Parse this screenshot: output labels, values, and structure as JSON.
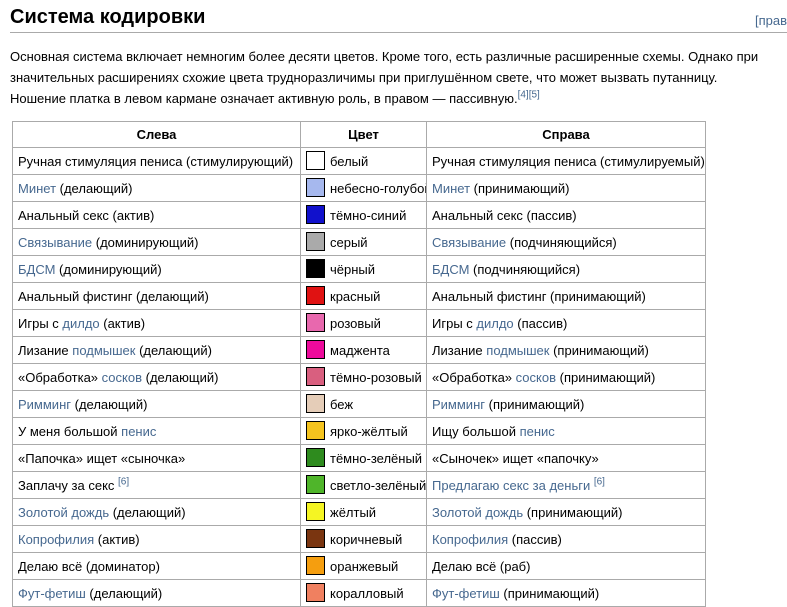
{
  "header": {
    "title": "Система кодировки",
    "edit_label": "[прав"
  },
  "intro": {
    "segments": [
      {
        "text": "Основная система включает немногим более десяти цветов. Кроме того, есть различные расширенные схемы. Однако при значительных расширениях схожие цвета трудноразличимы при приглушённом свете, что может вызвать путанницу. Ношение платка в левом кармане означает активную роль, в правом — пассивную.",
        "link": false
      },
      {
        "text": "[4]",
        "link": true,
        "sup": true
      },
      {
        "text": "[5]",
        "link": true,
        "sup": true
      }
    ]
  },
  "colors": {
    "link": "#46688f",
    "table_border": "#aaaaaa"
  },
  "table": {
    "headers": [
      "Слева",
      "Цвет",
      "Справа"
    ],
    "rows": [
      {
        "left": [
          {
            "text": "Ручная стимуляция пениса (стимулирующий)",
            "link": false
          }
        ],
        "swatch": "#ffffff",
        "color_name": "белый",
        "right": [
          {
            "text": "Ручная стимуляция пениса (стимулируемый)",
            "link": false
          }
        ]
      },
      {
        "left": [
          {
            "text": "Минет",
            "link": true
          },
          {
            "text": " (делающий)",
            "link": false
          }
        ],
        "swatch": "#a6b8ee",
        "color_name": "небесно-голубой",
        "right": [
          {
            "text": "Минет",
            "link": true
          },
          {
            "text": " (принимающий)",
            "link": false
          }
        ]
      },
      {
        "left": [
          {
            "text": "Анальный секс (актив)",
            "link": false
          }
        ],
        "swatch": "#1111cc",
        "color_name": "тёмно-синий",
        "right": [
          {
            "text": "Анальный секс (пассив)",
            "link": false
          }
        ]
      },
      {
        "left": [
          {
            "text": "Связывание",
            "link": true
          },
          {
            "text": " (доминирующий)",
            "link": false
          }
        ],
        "swatch": "#aaaaaa",
        "color_name": "серый",
        "right": [
          {
            "text": "Связывание",
            "link": true
          },
          {
            "text": " (подчиняющийся)",
            "link": false
          }
        ]
      },
      {
        "left": [
          {
            "text": "БДСМ",
            "link": true
          },
          {
            "text": " (доминирующий)",
            "link": false
          }
        ],
        "swatch": "#000000",
        "color_name": "чёрный",
        "right": [
          {
            "text": "БДСМ",
            "link": true
          },
          {
            "text": " (подчиняющийся)",
            "link": false
          }
        ]
      },
      {
        "left": [
          {
            "text": "Анальный фистинг (делающий)",
            "link": false
          }
        ],
        "swatch": "#e01212",
        "color_name": "красный",
        "right": [
          {
            "text": "Анальный фистинг (принимающий)",
            "link": false
          }
        ]
      },
      {
        "left": [
          {
            "text": "Игры с ",
            "link": false
          },
          {
            "text": "дилдо",
            "link": true
          },
          {
            "text": " (актив)",
            "link": false
          }
        ],
        "swatch": "#e868ae",
        "color_name": "розовый",
        "right": [
          {
            "text": "Игры с ",
            "link": false
          },
          {
            "text": "дилдо",
            "link": true
          },
          {
            "text": " (пассив)",
            "link": false
          }
        ]
      },
      {
        "left": [
          {
            "text": "Лизание ",
            "link": false
          },
          {
            "text": "подмышек",
            "link": true
          },
          {
            "text": " (делающий)",
            "link": false
          }
        ],
        "swatch": "#ee0a9c",
        "color_name": "маджента",
        "right": [
          {
            "text": "Лизание ",
            "link": false
          },
          {
            "text": "подмышек",
            "link": true
          },
          {
            "text": " (принимающий)",
            "link": false
          }
        ]
      },
      {
        "left": [
          {
            "text": "«Обработка» ",
            "link": false
          },
          {
            "text": "сосков",
            "link": true
          },
          {
            "text": " (делающий)",
            "link": false
          }
        ],
        "swatch": "#d95f7f",
        "color_name": "тёмно-розовый",
        "right": [
          {
            "text": "«Обработка» ",
            "link": false
          },
          {
            "text": "сосков",
            "link": true
          },
          {
            "text": " (принимающий)",
            "link": false
          }
        ]
      },
      {
        "left": [
          {
            "text": "Римминг",
            "link": true
          },
          {
            "text": " (делающий)",
            "link": false
          }
        ],
        "swatch": "#e5cdb8",
        "color_name": "беж",
        "right": [
          {
            "text": "Римминг",
            "link": true
          },
          {
            "text": " (принимающий)",
            "link": false
          }
        ]
      },
      {
        "left": [
          {
            "text": "У меня большой ",
            "link": false
          },
          {
            "text": "пенис",
            "link": true
          }
        ],
        "swatch": "#f5c41e",
        "color_name": "ярко-жёлтый",
        "right": [
          {
            "text": "Ищу большой ",
            "link": false
          },
          {
            "text": "пенис",
            "link": true
          }
        ]
      },
      {
        "left": [
          {
            "text": "«Папочка» ищет «сыночка»",
            "link": false
          }
        ],
        "swatch": "#2e8b1e",
        "color_name": "тёмно-зелёный",
        "right": [
          {
            "text": "«Сыночек» ищет «папочку»",
            "link": false
          }
        ]
      },
      {
        "left": [
          {
            "text": "Заплачу за секс ",
            "link": false
          },
          {
            "text": "[6]",
            "link": true,
            "sup": true
          }
        ],
        "swatch": "#4fb52a",
        "color_name": "светло-зелёный",
        "right": [
          {
            "text": "Предлагаю секс за деньги ",
            "link": true
          },
          {
            "text": "[6]",
            "link": true,
            "sup": true
          }
        ]
      },
      {
        "left": [
          {
            "text": "Золотой дождь",
            "link": true
          },
          {
            "text": " (делающий)",
            "link": false
          }
        ],
        "swatch": "#f5f523",
        "color_name": "жёлтый",
        "right": [
          {
            "text": "Золотой дождь",
            "link": true
          },
          {
            "text": " (принимающий)",
            "link": false
          }
        ]
      },
      {
        "left": [
          {
            "text": "Копрофилия",
            "link": true
          },
          {
            "text": " (актив)",
            "link": false
          }
        ],
        "swatch": "#7a3510",
        "color_name": "коричневый",
        "right": [
          {
            "text": "Копрофилия",
            "link": true
          },
          {
            "text": " (пассив)",
            "link": false
          }
        ]
      },
      {
        "left": [
          {
            "text": "Делаю всё (доминатор)",
            "link": false
          }
        ],
        "swatch": "#f59e0f",
        "color_name": "оранжевый",
        "right": [
          {
            "text": "Делаю всё (раб)",
            "link": false
          }
        ]
      },
      {
        "left": [
          {
            "text": "Фут-фетиш",
            "link": true
          },
          {
            "text": " (делающий)",
            "link": false
          }
        ],
        "swatch": "#f08060",
        "color_name": "коралловый",
        "right": [
          {
            "text": "Фут-фетиш",
            "link": true
          },
          {
            "text": " (принимающий)",
            "link": false
          }
        ]
      }
    ]
  }
}
